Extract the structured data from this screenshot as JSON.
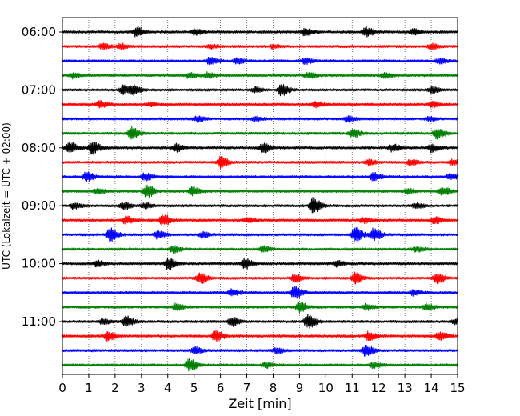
{
  "chart_data": {
    "type": "line",
    "subtype": "helicorder",
    "xlabel": "Zeit  [min]",
    "ylabel": "UTC (Lokalzeit = UTC + 02:00)",
    "xlim": [
      0,
      15
    ],
    "x_ticks": [
      "0",
      "1",
      "2",
      "3",
      "4",
      "5",
      "6",
      "7",
      "8",
      "9",
      "10",
      "11",
      "12",
      "13",
      "14",
      "15"
    ],
    "grid": "vertical dotted lines at each minute",
    "y_tick_labels": [
      "06:00",
      "07:00",
      "08:00",
      "09:00",
      "10:00",
      "11:00"
    ],
    "trace_interval_min": 15,
    "trace_colors": [
      "#000000",
      "#ff0000",
      "#0000ff",
      "#008000"
    ],
    "series": [
      {
        "start": "06:00",
        "color": "#000000",
        "events": [
          {
            "x": 2.8,
            "amp": 5
          },
          {
            "x": 5.0,
            "amp": 3
          },
          {
            "x": 9.2,
            "amp": 4
          },
          {
            "x": 11.5,
            "amp": 5
          },
          {
            "x": 13.3,
            "amp": 3
          }
        ]
      },
      {
        "start": "06:15",
        "color": "#ff0000",
        "events": [
          {
            "x": 1.5,
            "amp": 3
          },
          {
            "x": 2.2,
            "amp": 3
          },
          {
            "x": 5.6,
            "amp": 2
          },
          {
            "x": 8.0,
            "amp": 2
          },
          {
            "x": 14.0,
            "amp": 3
          }
        ]
      },
      {
        "start": "06:30",
        "color": "#0000ff",
        "events": [
          {
            "x": 5.6,
            "amp": 4
          },
          {
            "x": 6.6,
            "amp": 3
          },
          {
            "x": 9.2,
            "amp": 3
          },
          {
            "x": 14.3,
            "amp": 3
          }
        ]
      },
      {
        "start": "06:45",
        "color": "#008000",
        "events": [
          {
            "x": 0.4,
            "amp": 3
          },
          {
            "x": 4.8,
            "amp": 3
          },
          {
            "x": 5.5,
            "amp": 3
          },
          {
            "x": 9.3,
            "amp": 3
          },
          {
            "x": 12.2,
            "amp": 3
          }
        ]
      },
      {
        "start": "07:00",
        "color": "#000000",
        "events": [
          {
            "x": 2.3,
            "amp": 5
          },
          {
            "x": 2.7,
            "amp": 5
          },
          {
            "x": 7.3,
            "amp": 3
          },
          {
            "x": 8.3,
            "amp": 6
          },
          {
            "x": 14.0,
            "amp": 3
          }
        ]
      },
      {
        "start": "07:15",
        "color": "#ff0000",
        "events": [
          {
            "x": 1.4,
            "amp": 4
          },
          {
            "x": 3.3,
            "amp": 2
          },
          {
            "x": 9.6,
            "amp": 3
          },
          {
            "x": 14.0,
            "amp": 3
          }
        ]
      },
      {
        "start": "07:30",
        "color": "#0000ff",
        "events": [
          {
            "x": 5.1,
            "amp": 3
          },
          {
            "x": 7.3,
            "amp": 2
          },
          {
            "x": 10.8,
            "amp": 3
          },
          {
            "x": 13.9,
            "amp": 2
          }
        ]
      },
      {
        "start": "07:45",
        "color": "#008000",
        "events": [
          {
            "x": 2.6,
            "amp": 7
          },
          {
            "x": 11.0,
            "amp": 5
          },
          {
            "x": 14.2,
            "amp": 6
          }
        ]
      },
      {
        "start": "08:00",
        "color": "#000000",
        "events": [
          {
            "x": 0.25,
            "amp": 7
          },
          {
            "x": 1.1,
            "amp": 8
          },
          {
            "x": 4.3,
            "amp": 4
          },
          {
            "x": 7.6,
            "amp": 5
          },
          {
            "x": 12.5,
            "amp": 4
          },
          {
            "x": 14.0,
            "amp": 4
          }
        ]
      },
      {
        "start": "08:15",
        "color": "#ff0000",
        "events": [
          {
            "x": 6.0,
            "amp": 6
          },
          {
            "x": 11.6,
            "amp": 3
          },
          {
            "x": 13.2,
            "amp": 3
          },
          {
            "x": 14.8,
            "amp": 3
          }
        ]
      },
      {
        "start": "08:30",
        "color": "#0000ff",
        "events": [
          {
            "x": 0.9,
            "amp": 5
          },
          {
            "x": 3.1,
            "amp": 4
          },
          {
            "x": 11.8,
            "amp": 4
          },
          {
            "x": 14.7,
            "amp": 3
          }
        ]
      },
      {
        "start": "08:45",
        "color": "#008000",
        "events": [
          {
            "x": 1.3,
            "amp": 3
          },
          {
            "x": 3.2,
            "amp": 7
          },
          {
            "x": 4.9,
            "amp": 5
          },
          {
            "x": 13.1,
            "amp": 3
          },
          {
            "x": 14.4,
            "amp": 5
          }
        ]
      },
      {
        "start": "09:00",
        "color": "#000000",
        "events": [
          {
            "x": 0.4,
            "amp": 3
          },
          {
            "x": 2.3,
            "amp": 4
          },
          {
            "x": 3.1,
            "amp": 3
          },
          {
            "x": 9.5,
            "amp": 9
          },
          {
            "x": 13.4,
            "amp": 3
          }
        ]
      },
      {
        "start": "09:15",
        "color": "#ff0000",
        "events": [
          {
            "x": 2.4,
            "amp": 4
          },
          {
            "x": 3.8,
            "amp": 6
          },
          {
            "x": 7.0,
            "amp": 3
          },
          {
            "x": 11.4,
            "amp": 3
          },
          {
            "x": 14.1,
            "amp": 4
          }
        ]
      },
      {
        "start": "09:30",
        "color": "#0000ff",
        "events": [
          {
            "x": 1.8,
            "amp": 7
          },
          {
            "x": 3.6,
            "amp": 4
          },
          {
            "x": 5.3,
            "amp": 3
          },
          {
            "x": 11.1,
            "amp": 8
          },
          {
            "x": 11.8,
            "amp": 7
          }
        ]
      },
      {
        "start": "09:45",
        "color": "#008000",
        "events": [
          {
            "x": 4.2,
            "amp": 4
          },
          {
            "x": 7.6,
            "amp": 3
          },
          {
            "x": 13.4,
            "amp": 3
          }
        ]
      },
      {
        "start": "10:00",
        "color": "#000000",
        "events": [
          {
            "x": 1.3,
            "amp": 3
          },
          {
            "x": 4.0,
            "amp": 7
          },
          {
            "x": 6.9,
            "amp": 6
          },
          {
            "x": 10.4,
            "amp": 3
          }
        ]
      },
      {
        "start": "10:15",
        "color": "#ff0000",
        "events": [
          {
            "x": 5.2,
            "amp": 6
          },
          {
            "x": 8.8,
            "amp": 4
          },
          {
            "x": 11.1,
            "amp": 6
          },
          {
            "x": 14.2,
            "amp": 6
          }
        ]
      },
      {
        "start": "10:30",
        "color": "#0000ff",
        "events": [
          {
            "x": 6.4,
            "amp": 4
          },
          {
            "x": 8.8,
            "amp": 7
          },
          {
            "x": 13.3,
            "amp": 3
          }
        ]
      },
      {
        "start": "10:45",
        "color": "#008000",
        "events": [
          {
            "x": 4.3,
            "amp": 4
          },
          {
            "x": 9.0,
            "amp": 5
          },
          {
            "x": 11.5,
            "amp": 3
          },
          {
            "x": 13.8,
            "amp": 4
          }
        ]
      },
      {
        "start": "11:00",
        "color": "#000000",
        "events": [
          {
            "x": 1.5,
            "amp": 3
          },
          {
            "x": 2.4,
            "amp": 6
          },
          {
            "x": 6.4,
            "amp": 5
          },
          {
            "x": 9.3,
            "amp": 8
          },
          {
            "x": 14.9,
            "amp": 3
          }
        ]
      },
      {
        "start": "11:15",
        "color": "#ff0000",
        "events": [
          {
            "x": 1.7,
            "amp": 5
          },
          {
            "x": 5.8,
            "amp": 6
          },
          {
            "x": 11.6,
            "amp": 5
          },
          {
            "x": 14.3,
            "amp": 5
          }
        ]
      },
      {
        "start": "11:30",
        "color": "#0000ff",
        "events": [
          {
            "x": 5.0,
            "amp": 4
          },
          {
            "x": 8.1,
            "amp": 3
          },
          {
            "x": 11.5,
            "amp": 6
          }
        ]
      },
      {
        "start": "11:45",
        "color": "#008000",
        "events": [
          {
            "x": 4.8,
            "amp": 7
          },
          {
            "x": 7.7,
            "amp": 3
          },
          {
            "x": 11.8,
            "amp": 3
          }
        ]
      }
    ]
  }
}
